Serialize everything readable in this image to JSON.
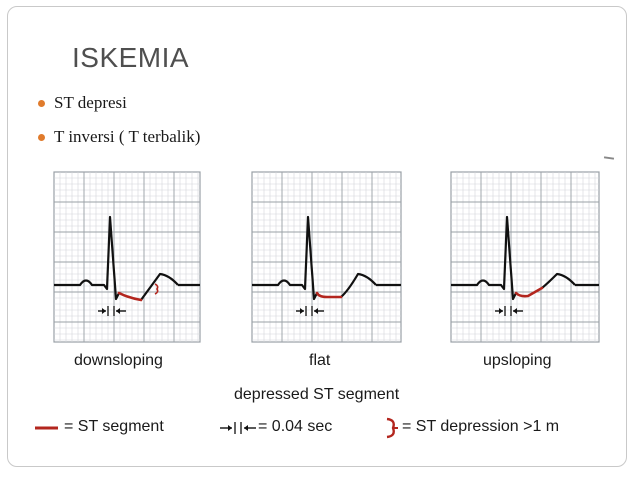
{
  "slide": {
    "title": "ISKEMIA",
    "bullets": [
      "ST depresi",
      "T inversi ( T terbalik)"
    ],
    "bullet_color": "#e07b2c"
  },
  "figure": {
    "panels": [
      {
        "label": "downsloping"
      },
      {
        "label": "flat"
      },
      {
        "label": "upsloping"
      }
    ],
    "caption": "depressed ST segment",
    "legend": {
      "st_segment": "= ST segment",
      "interval": "= 0.04 sec",
      "depression": "= ST depression >1 m"
    },
    "colors": {
      "trace": "#111111",
      "st_segment": "#b3261e",
      "grid": "#9aa0a6",
      "grid_minor": "#d2d5d9"
    }
  }
}
